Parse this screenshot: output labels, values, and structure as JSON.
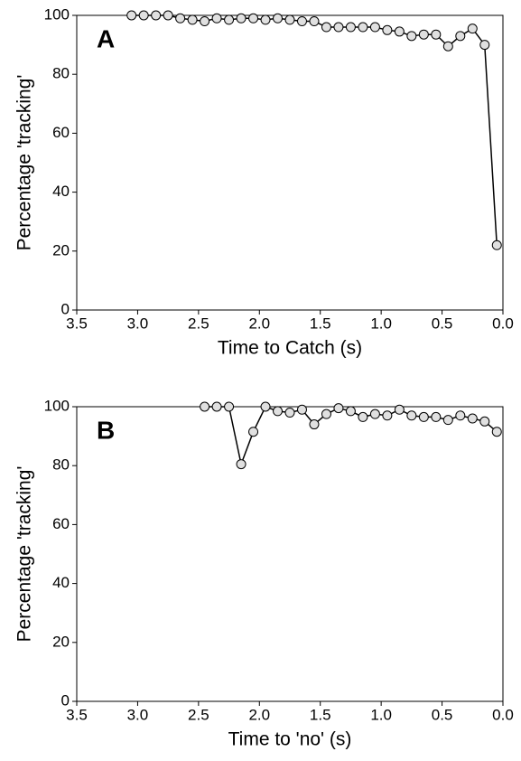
{
  "chart_data": [
    {
      "type": "line",
      "label": "A",
      "xlabel": "Time to Catch (s)",
      "ylabel": "Percentage 'tracking'",
      "x": [
        3.05,
        2.95,
        2.85,
        2.75,
        2.65,
        2.55,
        2.45,
        2.35,
        2.25,
        2.15,
        2.05,
        1.95,
        1.85,
        1.75,
        1.65,
        1.55,
        1.45,
        1.35,
        1.25,
        1.15,
        1.05,
        0.95,
        0.85,
        0.75,
        0.65,
        0.55,
        0.45,
        0.35,
        0.25,
        0.15,
        0.05
      ],
      "values": [
        100,
        100,
        100,
        100,
        99,
        98.5,
        98,
        99,
        98.5,
        99,
        99,
        98.5,
        99,
        98.5,
        98,
        98,
        96,
        96,
        96,
        96,
        96,
        95,
        94.5,
        93,
        93.5,
        93.5,
        89.5,
        93,
        95.5,
        90,
        22
      ],
      "color": "#e0e0e0",
      "line_color": "#000000",
      "xlim": [
        3.5,
        0
      ],
      "ylim": [
        0,
        100
      ],
      "xticks": [
        {
          "value": 3.5,
          "label": "3.5"
        },
        {
          "value": 3,
          "label": "3.0"
        },
        {
          "value": 2.5,
          "label": "2.5"
        },
        {
          "value": 2,
          "label": "2.0"
        },
        {
          "value": 1.5,
          "label": "1.5"
        },
        {
          "value": 1,
          "label": "1.0"
        },
        {
          "value": 0.5,
          "label": "0.5"
        },
        {
          "value": 0,
          "label": "0.0"
        }
      ],
      "yticks": [
        0,
        20,
        40,
        60,
        80,
        100
      ]
    },
    {
      "type": "line",
      "label": "B",
      "xlabel": "Time to 'no' (s)",
      "ylabel": "Percentage 'tracking'",
      "x": [
        2.45,
        2.35,
        2.25,
        2.15,
        2.05,
        1.95,
        1.85,
        1.75,
        1.65,
        1.55,
        1.45,
        1.35,
        1.25,
        1.15,
        1.05,
        0.95,
        0.85,
        0.75,
        0.65,
        0.55,
        0.45,
        0.35,
        0.25,
        0.15,
        0.05
      ],
      "values": [
        100,
        100,
        100,
        80.5,
        91.5,
        100,
        98.5,
        98,
        99,
        94,
        97.5,
        99.5,
        98.5,
        96.5,
        97.5,
        97,
        99,
        97,
        96.5,
        96.5,
        95.5,
        97,
        96,
        95,
        91.5
      ],
      "color": "#e0e0e0",
      "line_color": "#000000",
      "xlim": [
        3.5,
        0
      ],
      "ylim": [
        0,
        100
      ],
      "xticks": [
        {
          "value": 3.5,
          "label": "3.5"
        },
        {
          "value": 3,
          "label": "3.0"
        },
        {
          "value": 2.5,
          "label": "2.5"
        },
        {
          "value": 2,
          "label": "2.0"
        },
        {
          "value": 1.5,
          "label": "1.5"
        },
        {
          "value": 1,
          "label": "1.0"
        },
        {
          "value": 0.5,
          "label": "0.5"
        },
        {
          "value": 0,
          "label": "0.0"
        }
      ],
      "yticks": [
        0,
        20,
        40,
        60,
        80,
        100
      ]
    }
  ]
}
